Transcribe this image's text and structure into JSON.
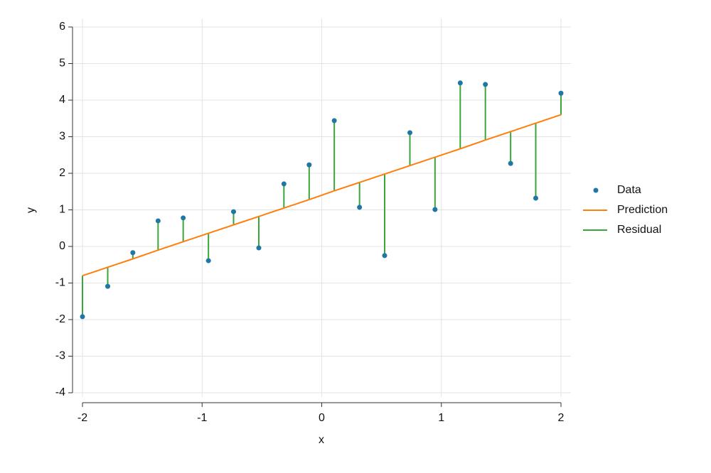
{
  "chart_data": {
    "type": "scatter",
    "x_label": "x",
    "y_label": "y",
    "x": [
      -2,
      -1.789,
      -1.579,
      -1.368,
      -1.158,
      -0.947,
      -0.737,
      -0.526,
      -0.316,
      -0.105,
      0.105,
      0.316,
      0.526,
      0.737,
      0.947,
      1.158,
      1.368,
      1.579,
      1.789,
      2
    ],
    "series": [
      {
        "name": "Data",
        "color": "#1f77a4",
        "values": [
          -1.92,
          -1.09,
          -0.17,
          0.7,
          0.78,
          -0.39,
          0.95,
          -0.04,
          1.71,
          2.23,
          3.44,
          1.07,
          -0.25,
          3.11,
          1.01,
          4.47,
          4.43,
          2.27,
          1.32,
          4.19
        ]
      },
      {
        "name": "Prediction",
        "color": "#ff7f0e",
        "values": [
          -0.8,
          -0.57,
          -0.34,
          -0.1,
          0.13,
          0.36,
          0.59,
          0.82,
          1.05,
          1.28,
          1.52,
          1.75,
          1.98,
          2.21,
          2.44,
          2.67,
          2.91,
          3.14,
          3.37,
          3.6
        ]
      },
      {
        "name": "Residual",
        "color": "#3aa63a"
      }
    ],
    "xlim": [
      -2,
      2
    ],
    "xticks": [
      -2,
      -1,
      0,
      1,
      2
    ],
    "ylim": [
      -4,
      6
    ],
    "yticks": [
      -4,
      -3,
      -2,
      -1,
      0,
      1,
      2,
      3,
      4,
      5,
      6
    ],
    "grid": true,
    "legend": "right"
  }
}
